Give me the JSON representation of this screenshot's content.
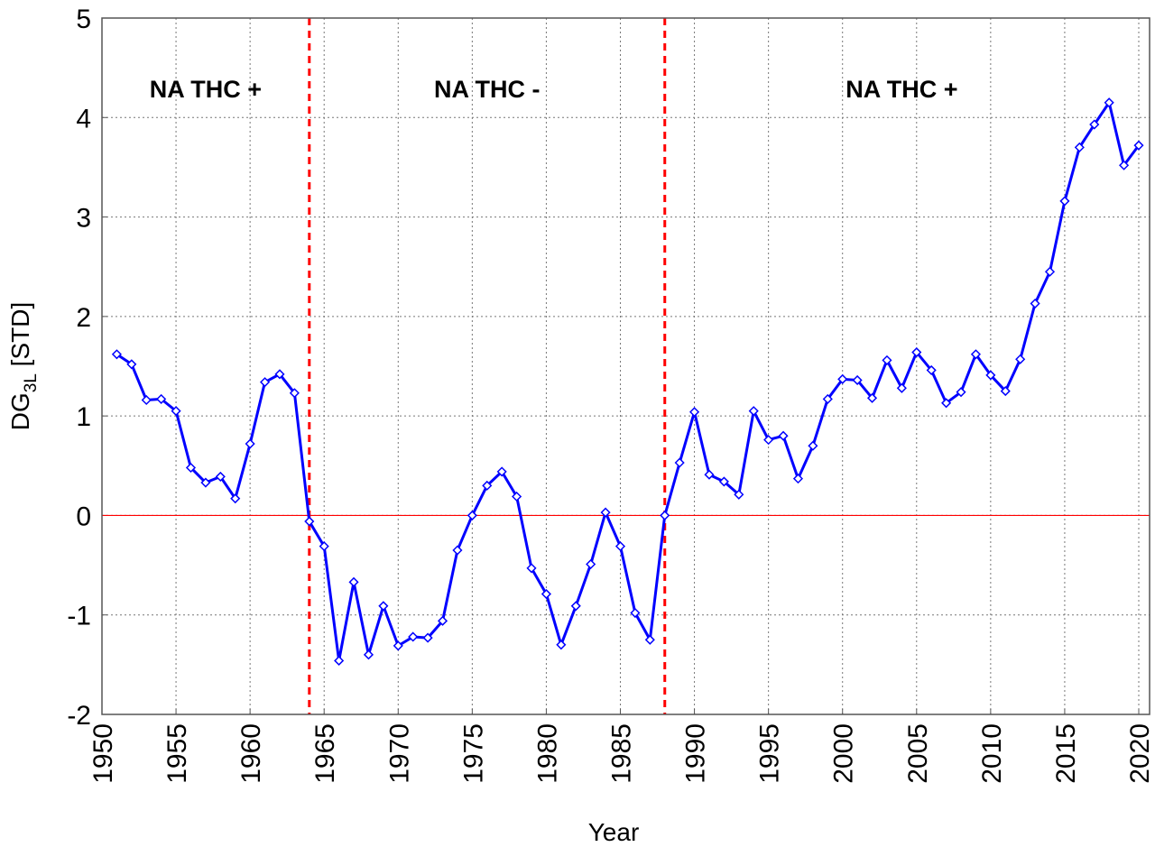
{
  "chart_data": {
    "type": "line",
    "title": "",
    "xlabel": "Year",
    "ylabel_main": "DG",
    "ylabel_sub": "3L",
    "ylabel_unit": " [STD]",
    "xlim": [
      1950,
      2020
    ],
    "ylim": [
      -2,
      5
    ],
    "xticks": [
      1950,
      1955,
      1960,
      1965,
      1970,
      1975,
      1980,
      1985,
      1990,
      1995,
      2000,
      2005,
      2010,
      2015,
      2020
    ],
    "yticks": [
      -2,
      -1,
      0,
      1,
      2,
      3,
      4,
      5
    ],
    "grid": true,
    "reference_line": {
      "y": 0,
      "color": "#ff0000"
    },
    "regime_boundaries": [
      1964,
      1988
    ],
    "regime_boundary_color": "#ff0000",
    "annotations": [
      {
        "text": "NA THC +",
        "x": 1957
      },
      {
        "text": "NA THC -",
        "x": 1976
      },
      {
        "text": "NA THC +",
        "x": 2004
      }
    ],
    "series": [
      {
        "color": "#0000ff",
        "marker": "diamond",
        "x": [
          1951,
          1952,
          1953,
          1954,
          1955,
          1956,
          1957,
          1958,
          1959,
          1960,
          1961,
          1962,
          1963,
          1964,
          1965,
          1966,
          1967,
          1968,
          1969,
          1970,
          1971,
          1972,
          1973,
          1974,
          1975,
          1976,
          1977,
          1978,
          1979,
          1980,
          1981,
          1982,
          1983,
          1984,
          1985,
          1986,
          1987,
          1988,
          1989,
          1990,
          1991,
          1992,
          1993,
          1994,
          1995,
          1996,
          1997,
          1998,
          1999,
          2000,
          2001,
          2002,
          2003,
          2004,
          2005,
          2006,
          2007,
          2008,
          2009,
          2010,
          2011,
          2012,
          2013,
          2014,
          2015,
          2016,
          2017,
          2018,
          2019,
          2020
        ],
        "y": [
          1.62,
          1.52,
          1.16,
          1.17,
          1.05,
          0.48,
          0.33,
          0.39,
          0.17,
          0.72,
          1.34,
          1.42,
          1.23,
          -0.06,
          -0.31,
          -1.46,
          -0.67,
          -1.4,
          -0.91,
          -1.31,
          -1.22,
          -1.23,
          -1.06,
          -0.35,
          0.0,
          0.3,
          0.44,
          0.19,
          -0.53,
          -0.79,
          -1.3,
          -0.91,
          -0.49,
          0.03,
          -0.31,
          -0.98,
          -1.25,
          0.0,
          0.53,
          1.04,
          0.41,
          0.34,
          0.21,
          1.05,
          0.76,
          0.8,
          0.37,
          0.7,
          1.17,
          1.37,
          1.36,
          1.18,
          1.56,
          1.28,
          1.64,
          1.46,
          1.13,
          1.24,
          1.62,
          1.41,
          1.25,
          1.57,
          2.13,
          2.45,
          3.16,
          3.7,
          3.93,
          4.15,
          3.52,
          3.72
        ]
      }
    ]
  }
}
